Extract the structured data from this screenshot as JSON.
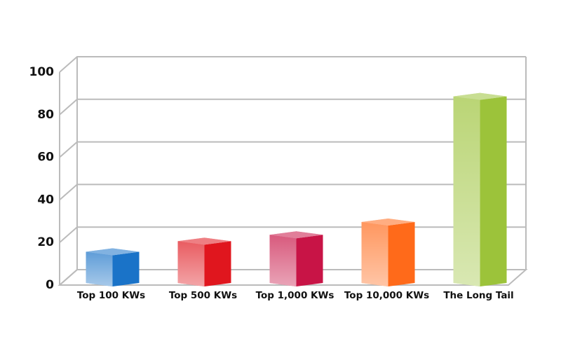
{
  "chart_data": {
    "type": "bar3d",
    "categories": [
      "Top 100 KWs",
      "Top 500 KWs",
      "Top 1,000 KWs",
      "Top 10,000 KWs",
      "The Long Tail"
    ],
    "values": [
      12,
      17,
      20,
      26,
      85
    ],
    "colors": [
      "#1a73c8",
      "#e0161e",
      "#c81446",
      "#ff6a1a",
      "#9cc33a"
    ],
    "ylim": [
      0,
      100
    ],
    "yticks": [
      0,
      20,
      40,
      60,
      80,
      100
    ],
    "grid": true
  }
}
